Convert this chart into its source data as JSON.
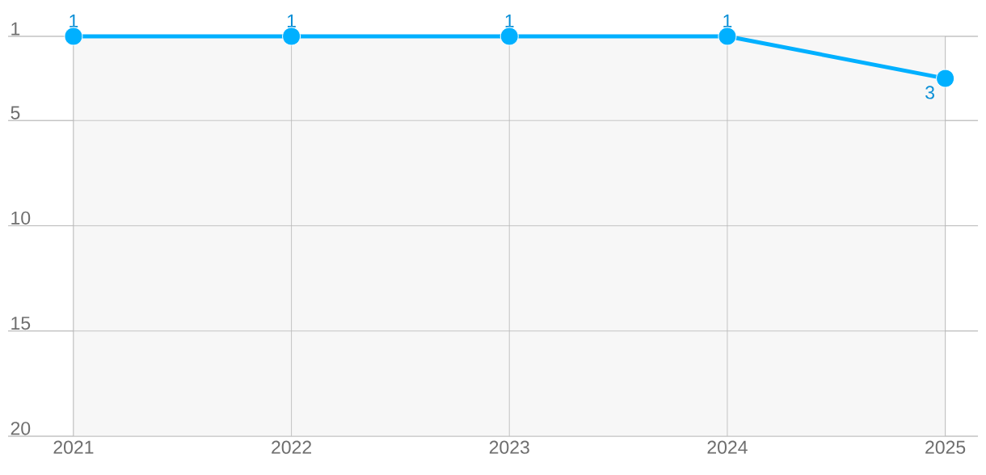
{
  "chart_data": {
    "type": "line",
    "x": [
      2021,
      2022,
      2023,
      2024,
      2025
    ],
    "series": [
      {
        "color": "#00b0ff",
        "values": [
          1,
          1,
          1,
          1,
          3
        ]
      }
    ],
    "xlim": [
      2020.7,
      2025.15
    ],
    "xticks": [
      2021,
      2022,
      2023,
      2024,
      2025
    ],
    "ylim": [
      20,
      1
    ],
    "yticks": [
      1,
      5,
      10,
      15,
      20
    ],
    "bands": [
      {
        "axis": "x",
        "from": 2021,
        "to": 2025,
        "color": "#f7f7f7"
      }
    ],
    "grid": true,
    "marker": "circle",
    "data_labels": true
  }
}
